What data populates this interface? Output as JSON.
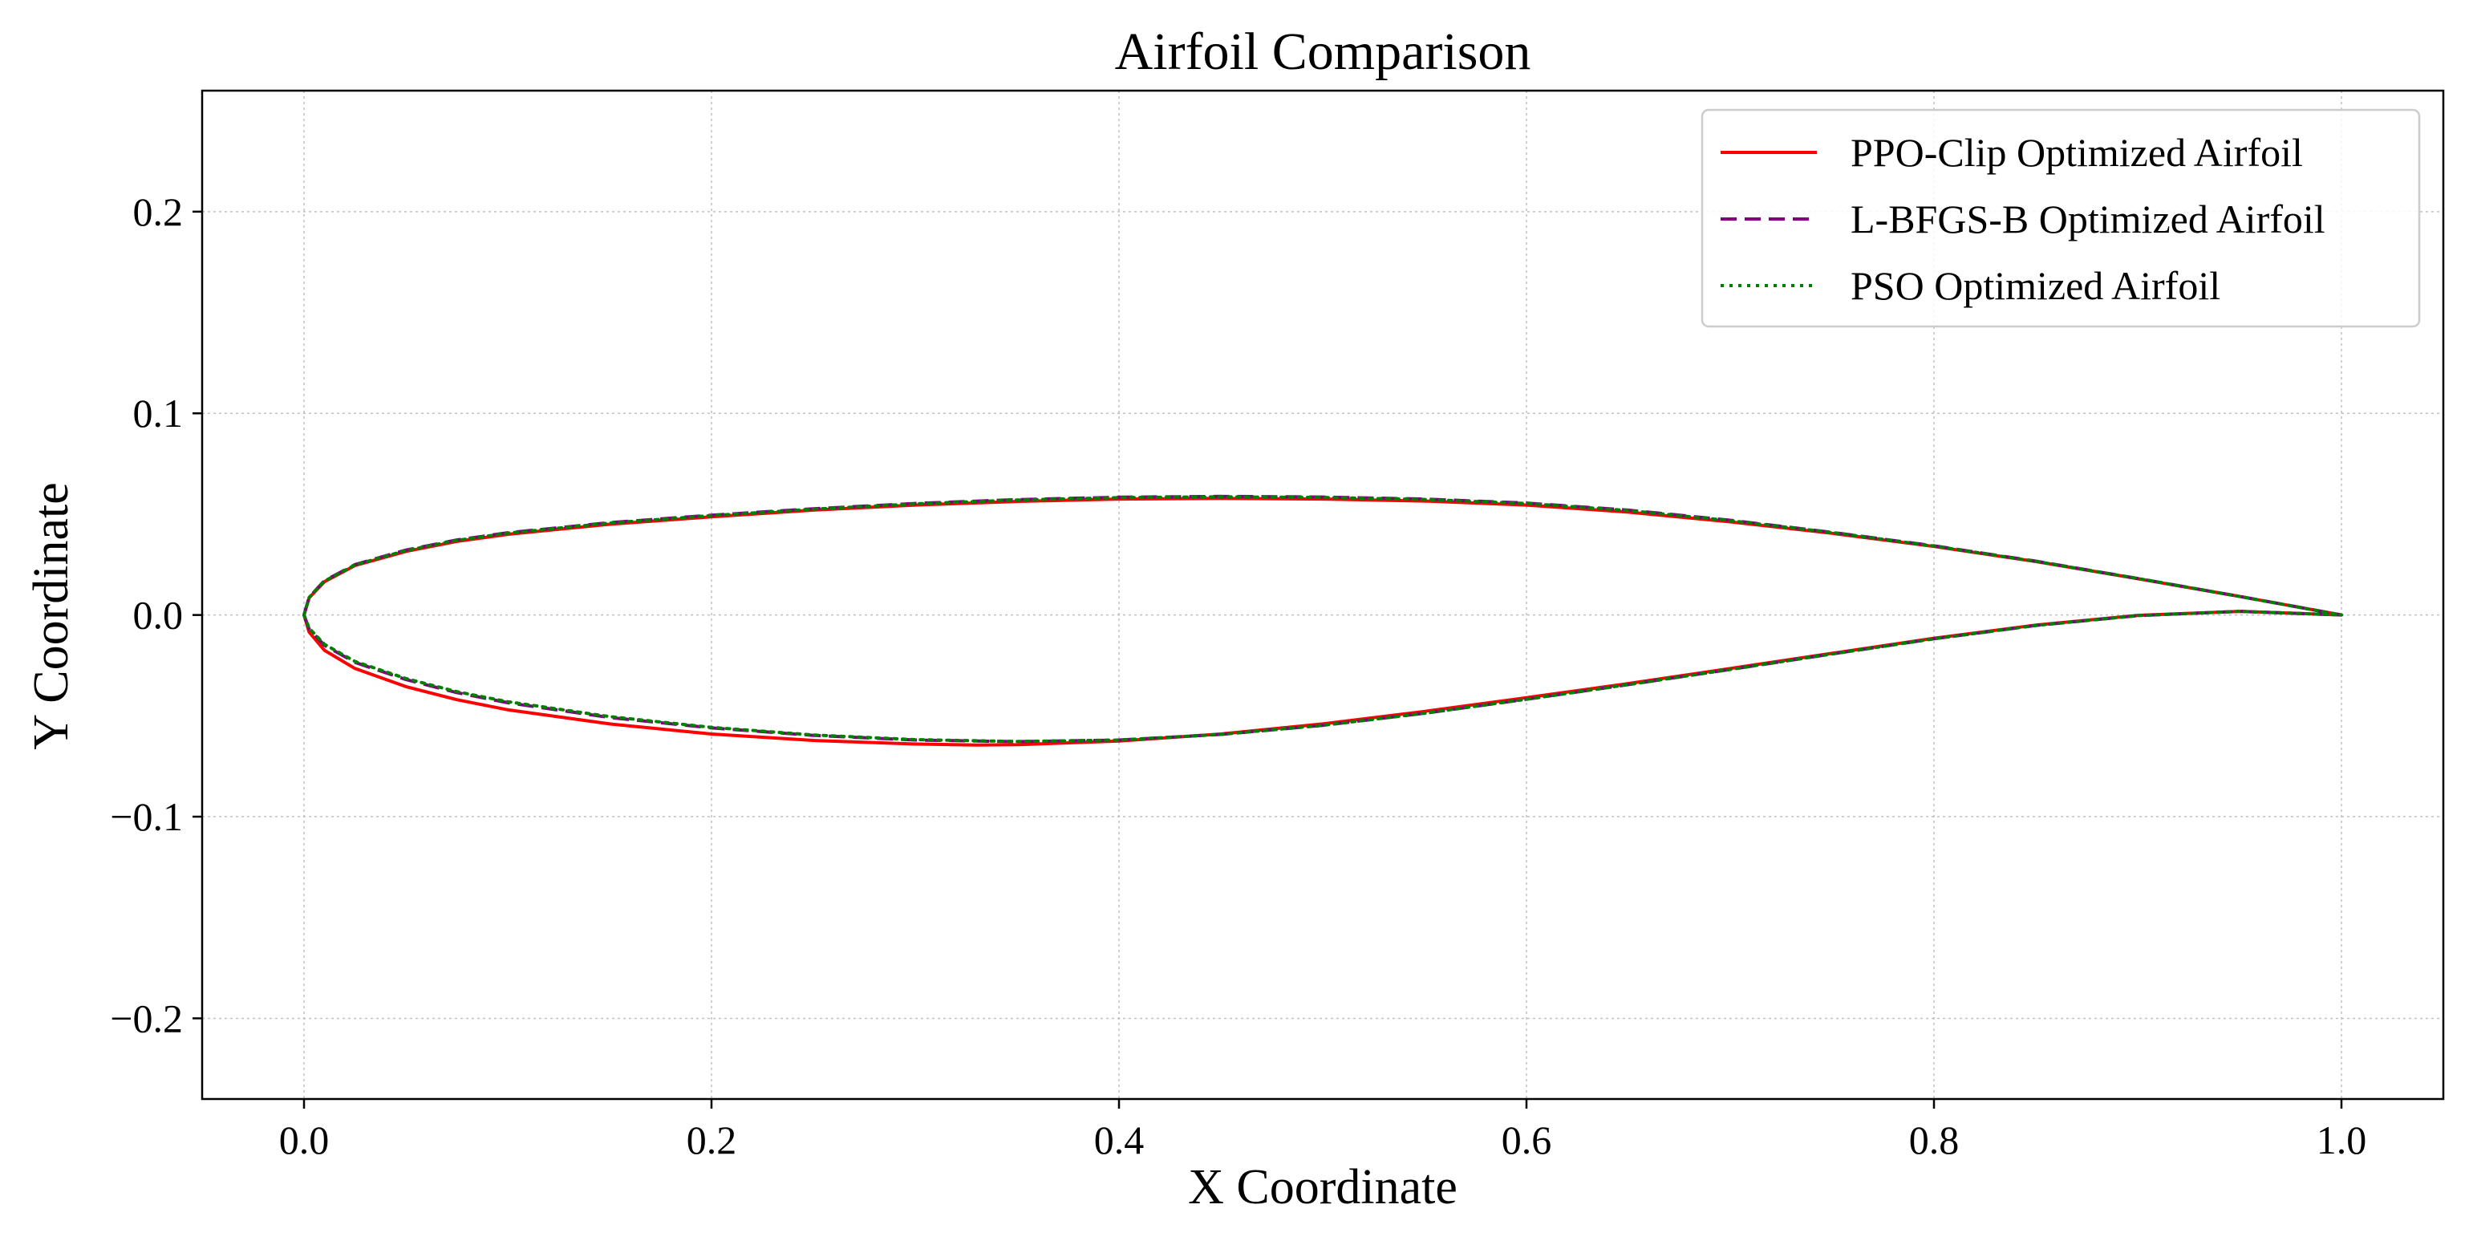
{
  "chart_data": {
    "type": "line",
    "title": "Airfoil Comparison",
    "xlabel": "X Coordinate",
    "ylabel": "Y Coordinate",
    "xlim": [
      -0.05,
      1.05
    ],
    "ylim": [
      -0.24,
      0.26
    ],
    "xticks": [
      {
        "value": 0.0,
        "label": "0.0"
      },
      {
        "value": 0.2,
        "label": "0.2"
      },
      {
        "value": 0.4,
        "label": "0.4"
      },
      {
        "value": 0.6,
        "label": "0.6"
      },
      {
        "value": 0.8,
        "label": "0.8"
      },
      {
        "value": 1.0,
        "label": "1.0"
      }
    ],
    "yticks": [
      {
        "value": 0.2,
        "label": "0.2"
      },
      {
        "value": 0.1,
        "label": "0.1"
      },
      {
        "value": 0.0,
        "label": "0.0"
      },
      {
        "value": -0.1,
        "label": "−0.1"
      },
      {
        "value": -0.2,
        "label": "−0.2"
      }
    ],
    "grid": true,
    "legend_position": "top-right",
    "series": [
      {
        "name": "PPO-Clip Optimized Airfoil",
        "color": "#ff0000",
        "style": "solid",
        "upper": {
          "x": [
            0,
            0.0025,
            0.01,
            0.025,
            0.05,
            0.075,
            0.1,
            0.15,
            0.2,
            0.25,
            0.3,
            0.35,
            0.4,
            0.45,
            0.5,
            0.55,
            0.6,
            0.65,
            0.7,
            0.75,
            0.8,
            0.85,
            0.9,
            0.95,
            1.0
          ],
          "y": [
            0,
            0.0085,
            0.0165,
            0.0245,
            0.0315,
            0.0365,
            0.04,
            0.045,
            0.0487,
            0.052,
            0.0545,
            0.0563,
            0.0575,
            0.0578,
            0.0575,
            0.0565,
            0.0545,
            0.051,
            0.0462,
            0.0405,
            0.034,
            0.0265,
            0.018,
            0.0092,
            0.0
          ]
        },
        "lower": {
          "x": [
            0,
            0.0025,
            0.01,
            0.025,
            0.05,
            0.075,
            0.1,
            0.15,
            0.2,
            0.25,
            0.3,
            0.33,
            0.35,
            0.4,
            0.45,
            0.5,
            0.55,
            0.6,
            0.65,
            0.7,
            0.75,
            0.8,
            0.85,
            0.9,
            0.95,
            1.0
          ],
          "y": [
            0,
            -0.0085,
            -0.0175,
            -0.0265,
            -0.0355,
            -0.042,
            -0.047,
            -0.054,
            -0.059,
            -0.0622,
            -0.064,
            -0.0645,
            -0.0643,
            -0.0625,
            -0.059,
            -0.054,
            -0.0478,
            -0.041,
            -0.034,
            -0.0265,
            -0.019,
            -0.0115,
            -0.005,
            -0.0002,
            0.0018,
            0.0
          ]
        }
      },
      {
        "name": "L-BFGS-B Optimized Airfoil",
        "color": "#800080",
        "style": "dashed",
        "upper": {
          "x": [
            0,
            0.0025,
            0.01,
            0.025,
            0.05,
            0.075,
            0.1,
            0.15,
            0.2,
            0.25,
            0.3,
            0.35,
            0.4,
            0.45,
            0.5,
            0.55,
            0.6,
            0.65,
            0.7,
            0.75,
            0.8,
            0.85,
            0.9,
            0.95,
            1.0
          ],
          "y": [
            0,
            0.0088,
            0.017,
            0.025,
            0.0322,
            0.0372,
            0.0408,
            0.0458,
            0.0495,
            0.0527,
            0.0553,
            0.0572,
            0.0584,
            0.0588,
            0.0585,
            0.0575,
            0.0555,
            0.052,
            0.047,
            0.041,
            0.0343,
            0.0267,
            0.0181,
            0.0092,
            0.0
          ]
        },
        "lower": {
          "x": [
            0,
            0.0025,
            0.01,
            0.025,
            0.05,
            0.075,
            0.1,
            0.15,
            0.2,
            0.25,
            0.3,
            0.35,
            0.4,
            0.45,
            0.5,
            0.55,
            0.6,
            0.65,
            0.7,
            0.75,
            0.8,
            0.85,
            0.9,
            0.95,
            1.0
          ],
          "y": [
            0,
            -0.007,
            -0.015,
            -0.0235,
            -0.032,
            -0.0385,
            -0.0435,
            -0.0508,
            -0.056,
            -0.0597,
            -0.062,
            -0.0628,
            -0.062,
            -0.0592,
            -0.0547,
            -0.0487,
            -0.0418,
            -0.0345,
            -0.027,
            -0.0193,
            -0.0118,
            -0.0052,
            -0.0003,
            0.0018,
            0.0
          ]
        }
      },
      {
        "name": "PSO Optimized Airfoil",
        "color": "#008000",
        "style": "dotted",
        "upper": {
          "x": [
            0,
            0.0025,
            0.01,
            0.025,
            0.05,
            0.075,
            0.1,
            0.15,
            0.2,
            0.25,
            0.3,
            0.35,
            0.4,
            0.45,
            0.5,
            0.55,
            0.6,
            0.65,
            0.7,
            0.75,
            0.8,
            0.85,
            0.9,
            0.95,
            1.0
          ],
          "y": [
            0,
            0.0087,
            0.0168,
            0.0248,
            0.032,
            0.037,
            0.0406,
            0.0456,
            0.0493,
            0.0525,
            0.0551,
            0.057,
            0.0582,
            0.0586,
            0.0583,
            0.0573,
            0.0553,
            0.0518,
            0.0468,
            0.0409,
            0.0342,
            0.0266,
            0.0181,
            0.0092,
            0.0
          ]
        },
        "lower": {
          "x": [
            0,
            0.0025,
            0.01,
            0.025,
            0.05,
            0.075,
            0.1,
            0.15,
            0.2,
            0.25,
            0.3,
            0.35,
            0.4,
            0.45,
            0.5,
            0.55,
            0.6,
            0.65,
            0.7,
            0.75,
            0.8,
            0.85,
            0.9,
            0.95,
            1.0
          ],
          "y": [
            0,
            -0.0065,
            -0.0145,
            -0.023,
            -0.0315,
            -0.038,
            -0.043,
            -0.0504,
            -0.0557,
            -0.0595,
            -0.0618,
            -0.0627,
            -0.062,
            -0.0592,
            -0.0547,
            -0.0487,
            -0.0418,
            -0.0345,
            -0.027,
            -0.0193,
            -0.0118,
            -0.0052,
            -0.0003,
            0.0018,
            0.0
          ]
        }
      }
    ]
  }
}
